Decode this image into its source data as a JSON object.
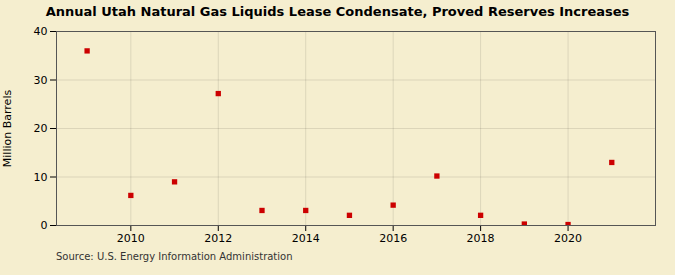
{
  "chart_data": {
    "type": "scatter",
    "title": "Annual Utah Natural Gas Liquids Lease Condensate, Proved Reserves Increases",
    "ylabel": "Million Barrels",
    "source": "Source: U.S. Energy Information Administration",
    "x": [
      2009,
      2010,
      2011,
      2012,
      2013,
      2014,
      2015,
      2016,
      2017,
      2018,
      2019,
      2020,
      2021
    ],
    "values": [
      36.0,
      6.2,
      9.0,
      27.2,
      3.1,
      3.1,
      2.1,
      4.2,
      10.2,
      2.1,
      0.3,
      0.2,
      13.0
    ],
    "color": "#cc0000",
    "marker": "square",
    "xlim": [
      2008.3,
      2022.0
    ],
    "xticks": [
      2010,
      2012,
      2014,
      2016,
      2018,
      2020
    ],
    "ylim": [
      0,
      40
    ],
    "yticks": [
      0,
      10,
      20,
      30,
      40
    ],
    "grid": true
  }
}
